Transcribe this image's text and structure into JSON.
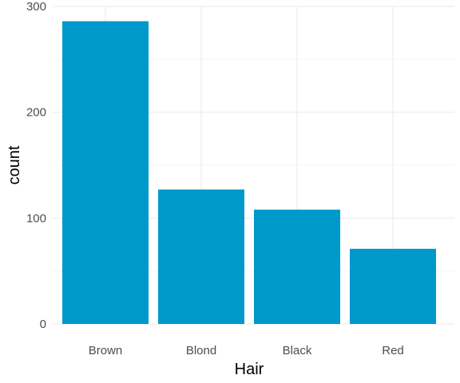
{
  "colors": {
    "bar": "#0099cc",
    "grid_major": "#ebebeb",
    "grid_minor": "#f5f5f5",
    "background": "#ffffff"
  },
  "chart_data": {
    "type": "bar",
    "title": "",
    "xlabel": "Hair",
    "ylabel": "count",
    "categories": [
      "Brown",
      "Blond",
      "Black",
      "Red"
    ],
    "values": [
      286,
      127,
      108,
      71
    ],
    "ylim": [
      0,
      300
    ],
    "yticks": [
      0,
      100,
      200,
      300
    ],
    "grid": true,
    "legend": "none"
  }
}
